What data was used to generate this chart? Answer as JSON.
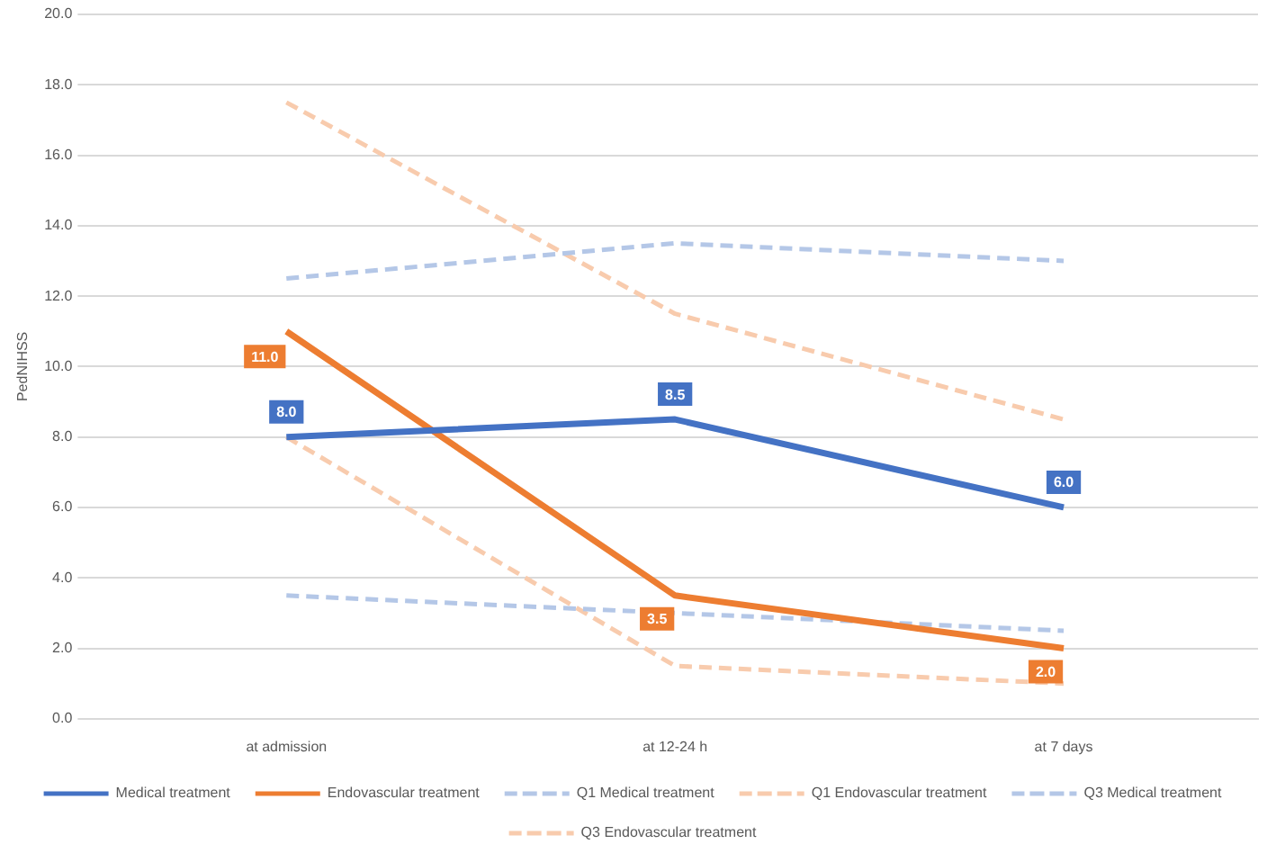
{
  "chart_data": {
    "type": "line",
    "ylabel": "PedNIHSS",
    "categories": [
      "at admission",
      "at 12-24 h",
      "at 7 days"
    ],
    "series": [
      {
        "name": "Medical treatment",
        "color": "#4472c4",
        "values": [
          8.0,
          8.5,
          6.0
        ],
        "value_labels": [
          "8.0",
          "8.5",
          "6.0"
        ],
        "line_style": "solid"
      },
      {
        "name": "Endovascular treatment",
        "color": "#ed7d31",
        "values": [
          11.0,
          3.5,
          2.0
        ],
        "value_labels": [
          "11.0",
          "3.5",
          "2.0"
        ],
        "line_style": "solid"
      },
      {
        "name": "Q1 Medical treatment",
        "color": "#b4c7e7",
        "values": [
          3.5,
          3.0,
          2.5
        ],
        "line_style": "dashed"
      },
      {
        "name": "Q1 Endovascular treatment",
        "color": "#f8cbad",
        "values": [
          8.0,
          1.5,
          1.0
        ],
        "line_style": "dashed"
      },
      {
        "name": "Q3 Medical treatment",
        "color": "#b4c7e7",
        "values": [
          12.5,
          13.5,
          13.0
        ],
        "line_style": "dashed"
      },
      {
        "name": "Q3 Endovascular treatment",
        "color": "#f8cbad",
        "values": [
          17.5,
          11.5,
          8.5
        ],
        "line_style": "dashed"
      }
    ],
    "ylim": [
      0,
      20
    ],
    "yticks": [
      {
        "value": 0,
        "label": "0.0"
      },
      {
        "value": 2,
        "label": "2.0"
      },
      {
        "value": 4,
        "label": "4.0"
      },
      {
        "value": 6,
        "label": "6.0"
      },
      {
        "value": 8,
        "label": "8.0"
      },
      {
        "value": 10,
        "label": "10.0"
      },
      {
        "value": 12,
        "label": "12.0"
      },
      {
        "value": 14,
        "label": "14.0"
      },
      {
        "value": 16,
        "label": "16.0"
      },
      {
        "value": 18,
        "label": "18.0"
      },
      {
        "value": 20,
        "label": "20.0"
      }
    ],
    "grid": "y",
    "legend": "bottom",
    "marker": "none"
  }
}
